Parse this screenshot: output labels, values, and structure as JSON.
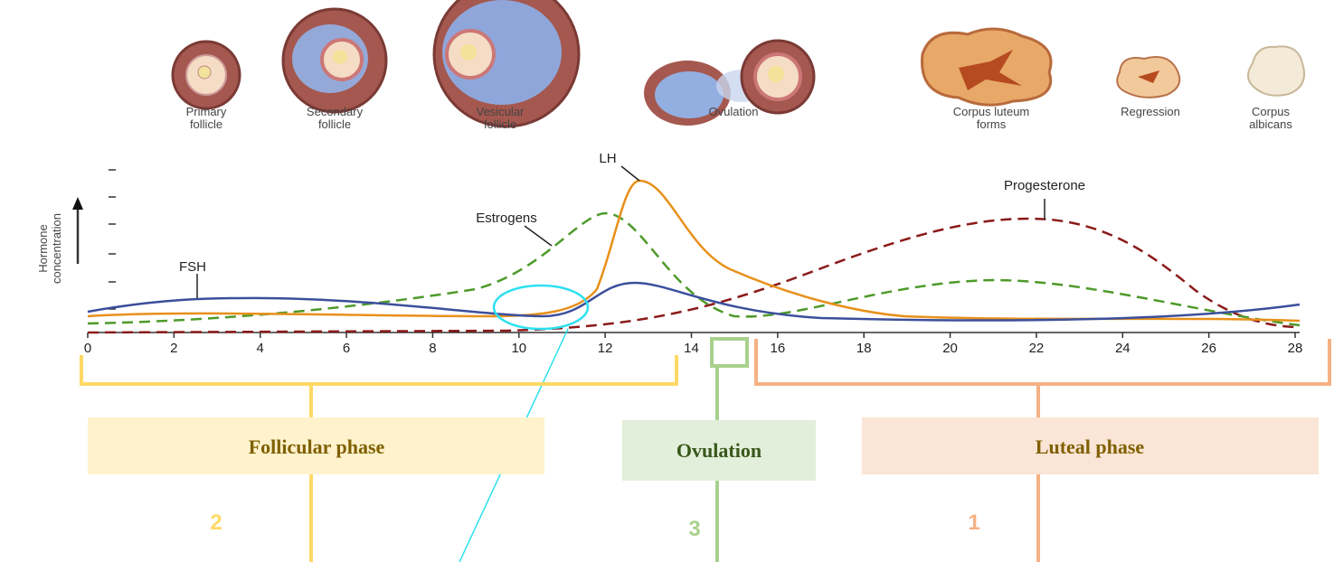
{
  "stages": [
    {
      "label": [
        "Primary",
        "follicle"
      ]
    },
    {
      "label": [
        "Secondary",
        "follicle"
      ]
    },
    {
      "label": [
        "Vesicular",
        "follicle"
      ]
    },
    {
      "label": [
        "Ovulation"
      ]
    },
    {
      "label": [
        "Corpus luteum",
        "forms"
      ]
    },
    {
      "label": [
        "Regression"
      ]
    },
    {
      "label": [
        "Corpus",
        "albicans"
      ]
    }
  ],
  "y_axis_label": [
    "Hormone",
    "concentration"
  ],
  "curve_labels": {
    "lh": "LH",
    "estrogens": "Estrogens",
    "progesterone": "Progesterone",
    "fsh": "FSH"
  },
  "x_axis_ticks": [
    "0",
    "2",
    "4",
    "6",
    "8",
    "10",
    "12",
    "14",
    "16",
    "18",
    "20",
    "22",
    "24",
    "26",
    "28"
  ],
  "phases": [
    {
      "label": "Follicular phase",
      "number": "2"
    },
    {
      "label": "Ovulation",
      "number": "3"
    },
    {
      "label": "Luteal phase",
      "number": "1"
    }
  ]
}
